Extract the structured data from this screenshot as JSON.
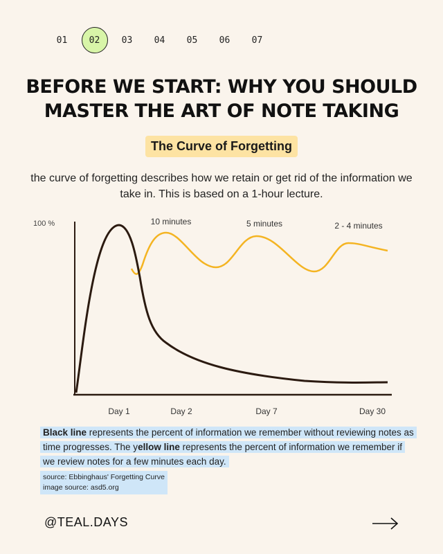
{
  "steps": {
    "items": [
      "01",
      "02",
      "03",
      "04",
      "05",
      "06",
      "07"
    ],
    "active_index": 1,
    "active_color": "#d8f5a8"
  },
  "title_lines": [
    "Before we start: why you should",
    "master the art of note taking"
  ],
  "pill": {
    "label": "The Curve of Forgetting",
    "color": "#fde3a3"
  },
  "description": "the curve of forgetting describes how we retain or get rid of the information we take in.  This is based on a 1-hour lecture.",
  "chart_data": {
    "type": "line",
    "y_top_label": "100 %",
    "x_tick_labels": [
      "Day 1",
      "Day 2",
      "Day 7",
      "Day 30"
    ],
    "annotations": [
      "10 minutes",
      "5 minutes",
      "2 - 4 minutes"
    ],
    "grid": false,
    "series": [
      {
        "color": "#2b1a10",
        "values_percent_at_ticks": [
          99,
          40,
          15,
          5
        ]
      },
      {
        "color": "#f4b422",
        "values_percent_at_ticks": [
          70,
          96,
          92,
          88
        ]
      }
    ]
  },
  "note": {
    "bold1": "Black line",
    "text1": " represents the percent of information we remember without reviewing notes as time progresses. The y",
    "bold2": "ellow line",
    "text2": " represents the percent of information we remember if we review notes for a few minutes each day."
  },
  "sources": [
    "source: Ebbinghaus' Forgetting Curve",
    "image source: asd5.org"
  ],
  "footer": {
    "handle": "@TEAL.DAYS",
    "next_icon": "arrow-right-icon"
  }
}
